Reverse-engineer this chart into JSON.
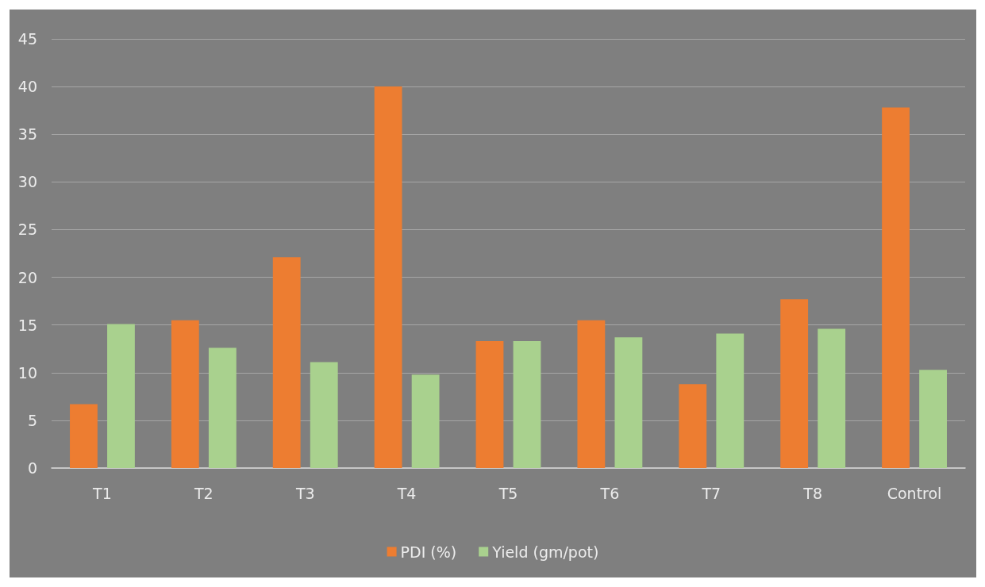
{
  "chart_data": {
    "type": "bar",
    "categories": [
      "T1",
      "T2",
      "T3",
      "T4",
      "T5",
      "T6",
      "T7",
      "T8",
      "Control"
    ],
    "series": [
      {
        "name": "PDI (%)",
        "color": "#ed7d31",
        "values": [
          6.7,
          15.5,
          22.1,
          40.0,
          13.3,
          15.5,
          8.8,
          17.7,
          37.8
        ]
      },
      {
        "name": "Yield (gm/pot)",
        "color": "#a9d18e",
        "values": [
          15.1,
          12.6,
          11.1,
          9.8,
          13.3,
          13.7,
          14.1,
          14.6,
          10.3
        ]
      }
    ],
    "ylim": [
      0,
      45
    ],
    "yticks": [
      0,
      5,
      10,
      15,
      20,
      25,
      30,
      35,
      40,
      45
    ],
    "grid": "y",
    "legend": "bottom"
  }
}
